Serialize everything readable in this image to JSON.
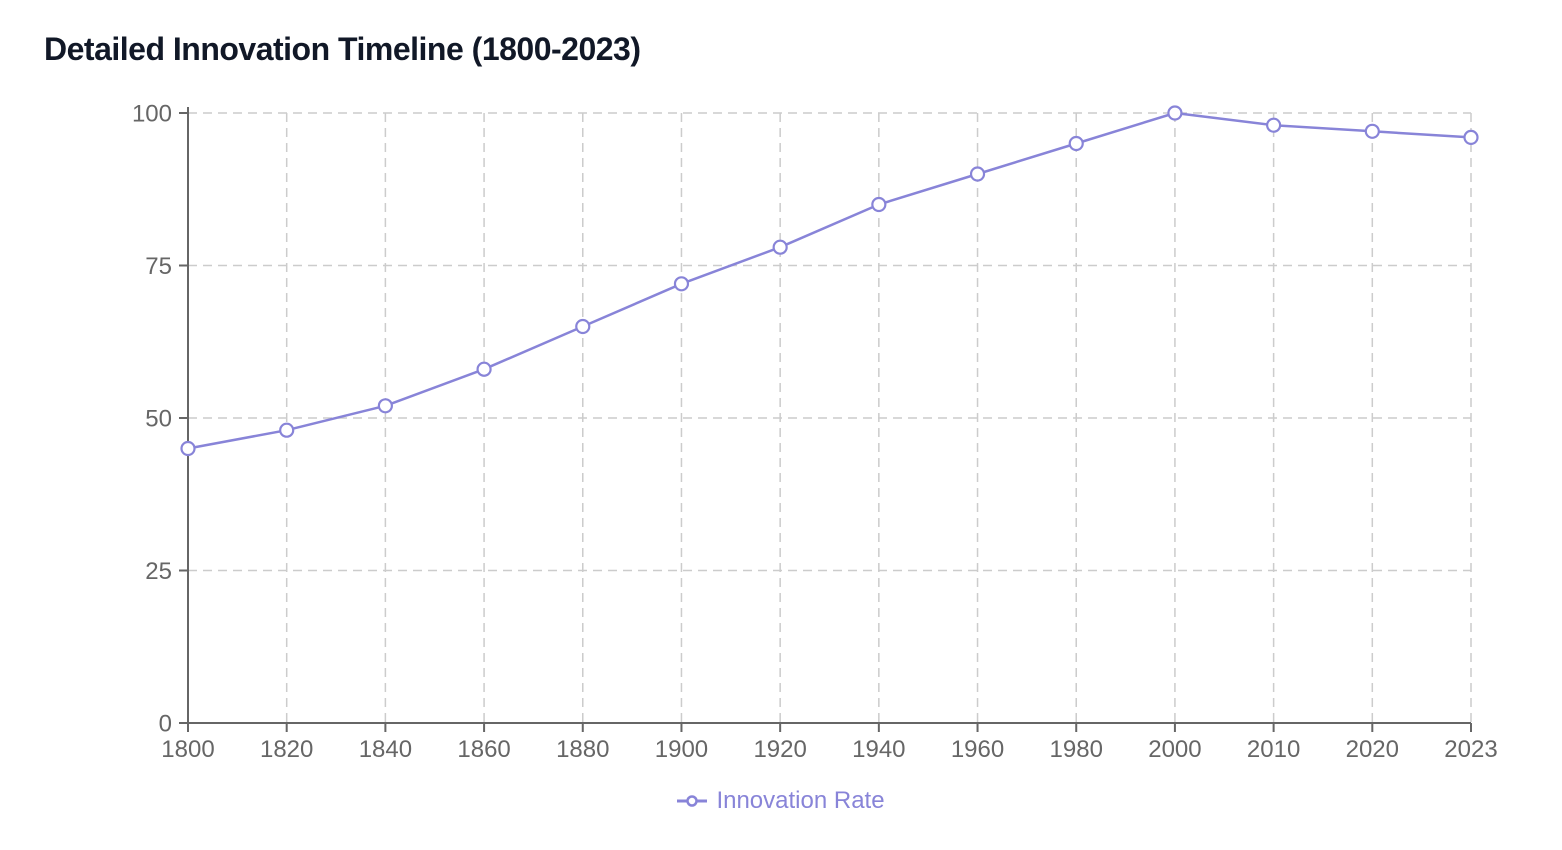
{
  "title": "Detailed Innovation Timeline (1800-2023)",
  "legend": {
    "label": "Innovation Rate"
  },
  "colors": {
    "line": "#8884d8",
    "marker_fill": "#ffffff",
    "axis": "#666666",
    "tick_text": "#666666",
    "grid": "#cccccc",
    "title_text": "#111827"
  },
  "chart_data": {
    "type": "line",
    "title": "Detailed Innovation Timeline (1800-2023)",
    "categories": [
      "1800",
      "1820",
      "1840",
      "1860",
      "1880",
      "1900",
      "1920",
      "1940",
      "1960",
      "1980",
      "2000",
      "2010",
      "2020",
      "2023"
    ],
    "series": [
      {
        "name": "Innovation Rate",
        "values": [
          45,
          48,
          52,
          58,
          65,
          72,
          78,
          85,
          90,
          95,
          100,
          98,
          97,
          96
        ]
      }
    ],
    "xlabel": "",
    "ylabel": "",
    "ylim": [
      0,
      100
    ],
    "yticks": [
      0,
      25,
      50,
      75,
      100
    ],
    "grid": true,
    "grid_style": "dashed",
    "legend_position": "bottom",
    "marker": "open-circle"
  }
}
